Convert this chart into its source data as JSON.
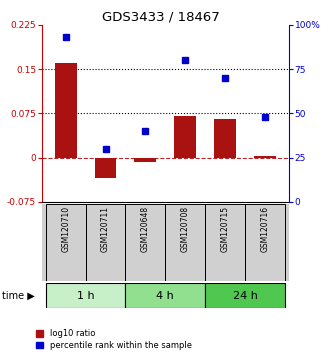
{
  "title": "GDS3433 / 18467",
  "samples": [
    "GSM120710",
    "GSM120711",
    "GSM120648",
    "GSM120708",
    "GSM120715",
    "GSM120716"
  ],
  "log10_ratio": [
    0.16,
    -0.035,
    -0.008,
    0.07,
    0.065,
    0.003
  ],
  "percentile_rank": [
    93,
    30,
    40,
    80,
    70,
    48
  ],
  "time_groups": [
    {
      "label": "1 h",
      "start": 0,
      "end": 2,
      "color": "#c8f0c8"
    },
    {
      "label": "4 h",
      "start": 2,
      "end": 4,
      "color": "#90e090"
    },
    {
      "label": "24 h",
      "start": 4,
      "end": 6,
      "color": "#50c850"
    }
  ],
  "bar_color": "#aa1111",
  "dot_color": "#0000cc",
  "left_ylim": [
    -0.075,
    0.225
  ],
  "left_yticks": [
    -0.075,
    0,
    0.075,
    0.15,
    0.225
  ],
  "right_ylim": [
    0,
    100
  ],
  "right_yticks": [
    0,
    25,
    50,
    75,
    100
  ],
  "right_yticklabels": [
    "0",
    "25",
    "50",
    "75",
    "100%"
  ],
  "hline_dotted": [
    0.075,
    0.15
  ],
  "hline_dashed": 0,
  "bg_color": "#ffffff",
  "label_log10": "log10 ratio",
  "label_pct": "percentile rank within the sample",
  "time_label": "time"
}
